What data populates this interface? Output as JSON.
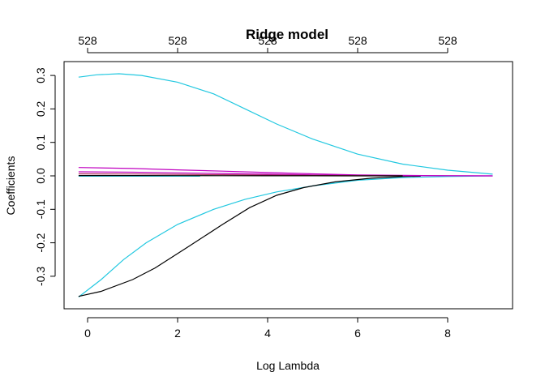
{
  "chart_data": {
    "type": "line",
    "title": "Ridge model",
    "xlabel": "Log Lambda",
    "ylabel": "Coefficients",
    "xlim": [
      -0.2,
      9.1
    ],
    "ylim": [
      -0.365,
      0.305
    ],
    "x_ticks": [
      0,
      2,
      4,
      6,
      8
    ],
    "x_tick_labels": [
      "0",
      "2",
      "4",
      "6",
      "8"
    ],
    "y_ticks": [
      -0.3,
      -0.2,
      -0.1,
      0.0,
      0.1,
      0.2,
      0.3
    ],
    "y_tick_labels": [
      "-0.3",
      "-0.2",
      "-0.1",
      "0.0",
      "0.1",
      "0.2",
      "0.3"
    ],
    "top_axis": {
      "ticks": [
        0,
        2,
        4,
        6,
        8
      ],
      "labels": [
        "528",
        "528",
        "528",
        "528",
        "528"
      ]
    },
    "grid": false,
    "series": [
      {
        "color": "#22c8e0",
        "x": [
          -0.2,
          0.2,
          0.7,
          1.2,
          2.0,
          2.8,
          3.5,
          4.2,
          5.0,
          6.0,
          7.0,
          8.0,
          9.0
        ],
        "y": [
          0.295,
          0.302,
          0.305,
          0.3,
          0.28,
          0.245,
          0.2,
          0.155,
          0.11,
          0.065,
          0.035,
          0.017,
          0.005
        ]
      },
      {
        "color": "#22c8e0",
        "x": [
          -0.2,
          0.3,
          0.8,
          1.3,
          2.0,
          2.8,
          3.5,
          4.2,
          5.0,
          6.0,
          7.0,
          8.0,
          9.0
        ],
        "y": [
          -0.362,
          -0.31,
          -0.25,
          -0.2,
          -0.145,
          -0.1,
          -0.07,
          -0.048,
          -0.03,
          -0.013,
          -0.005,
          -0.002,
          0.0
        ]
      },
      {
        "color": "#000000",
        "x": [
          -0.2,
          0.3,
          1.0,
          1.5,
          2.2,
          3.0,
          3.6,
          4.2,
          4.8,
          5.5,
          6.3,
          7.0,
          7.4
        ],
        "y": [
          -0.36,
          -0.345,
          -0.31,
          -0.275,
          -0.215,
          -0.145,
          -0.095,
          -0.058,
          -0.035,
          -0.018,
          -0.007,
          -0.002,
          -0.001
        ]
      },
      {
        "color": "#c000c0",
        "x": [
          -0.2,
          1.0,
          2.0,
          3.0,
          4.0,
          5.0,
          6.0,
          7.0,
          8.0,
          9.0
        ],
        "y": [
          0.025,
          0.022,
          0.018,
          0.014,
          0.01,
          0.006,
          0.003,
          0.0015,
          0.0005,
          0.0
        ]
      },
      {
        "color": "#c000c0",
        "x": [
          -0.2,
          1.0,
          2.0,
          3.0,
          4.0,
          5.0,
          6.0,
          7.0,
          8.0,
          9.0
        ],
        "y": [
          0.012,
          0.011,
          0.009,
          0.007,
          0.005,
          0.003,
          0.0015,
          0.0006,
          0.0002,
          0.0
        ]
      },
      {
        "color": "#b03060",
        "x": [
          -0.2,
          1.0,
          2.0,
          3.0,
          4.0,
          5.0,
          6.0,
          7.0
        ],
        "y": [
          0.006,
          0.0055,
          0.0045,
          0.0035,
          0.0025,
          0.0015,
          0.0008,
          0.0003
        ]
      },
      {
        "color": "#22c8e0",
        "x": [
          -0.2,
          2.5
        ],
        "y": [
          -0.001,
          -0.001
        ]
      },
      {
        "color": "#000000",
        "x": [
          -0.2,
          1.0,
          2.0,
          3.0,
          4.0,
          5.0,
          6.0,
          7.0
        ],
        "y": [
          0.001,
          0.0009,
          0.0007,
          0.0005,
          0.0003,
          0.0002,
          0.0001,
          0.0
        ]
      }
    ]
  }
}
